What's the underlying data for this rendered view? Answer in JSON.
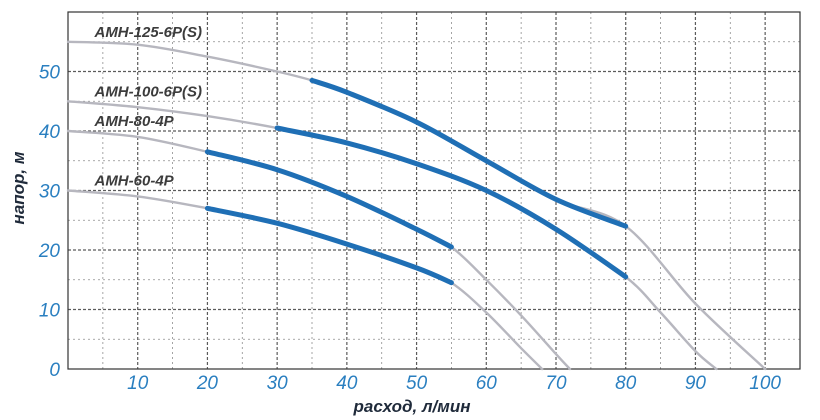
{
  "chart_data": {
    "type": "line",
    "xlabel": "расход, л/мин",
    "ylabel": "напор, м",
    "xlim": [
      0,
      105
    ],
    "ylim": [
      0,
      60
    ],
    "x_ticks": [
      "10",
      "20",
      "30",
      "40",
      "50",
      "60",
      "70",
      "80",
      "90",
      "100"
    ],
    "y_ticks": [
      "0",
      "10",
      "20",
      "30",
      "40",
      "50"
    ],
    "grid": true,
    "colors": {
      "curve_gray": "#b7b7bf",
      "curve_blue": "#1f6fb5",
      "grid": "#333333",
      "tick_text": "#2a7fc0"
    },
    "series": [
      {
        "name": "AMH-125-6P(S)",
        "x": [
          0,
          10,
          20,
          30,
          35,
          40,
          50,
          60,
          70,
          80,
          90,
          100
        ],
        "y": [
          55,
          54.5,
          52.5,
          50,
          48.5,
          46.5,
          41.5,
          35,
          28.5,
          24,
          11,
          0
        ],
        "working_range": [
          35,
          80
        ]
      },
      {
        "name": "AMH-100-6P(S)",
        "x": [
          0,
          10,
          20,
          30,
          40,
          50,
          60,
          70,
          80,
          85,
          90,
          93
        ],
        "y": [
          45,
          44,
          42.5,
          40.5,
          38,
          34.5,
          30,
          23.5,
          15.5,
          9.5,
          3,
          0
        ],
        "working_range": [
          30,
          80
        ]
      },
      {
        "name": "AMH-80-4P",
        "x": [
          0,
          10,
          20,
          30,
          40,
          50,
          55,
          60,
          65,
          70,
          72
        ],
        "y": [
          40,
          39,
          36.5,
          33.5,
          29,
          23.5,
          20.5,
          15,
          9,
          2.5,
          0
        ],
        "working_range": [
          20,
          55
        ]
      },
      {
        "name": "AMH-60-4P",
        "x": [
          0,
          10,
          20,
          30,
          40,
          50,
          55,
          60,
          65,
          68
        ],
        "y": [
          30,
          29,
          27,
          24.5,
          21,
          17,
          14.5,
          9.5,
          3.5,
          0
        ],
        "working_range": [
          20,
          55
        ]
      }
    ]
  }
}
